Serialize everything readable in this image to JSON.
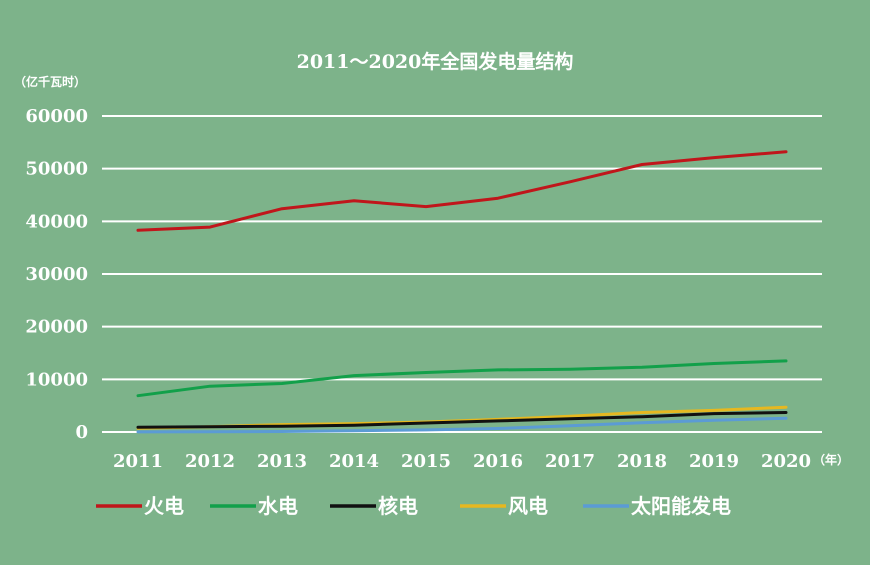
{
  "chart_data": {
    "type": "line",
    "title": "2011～2020年全国发电量结构",
    "y_unit": "（亿千瓦时）",
    "x_unit": "（年）",
    "categories": [
      "2011",
      "2012",
      "2013",
      "2014",
      "2015",
      "2016",
      "2017",
      "2018",
      "2019",
      "2020"
    ],
    "yticks": [
      "0",
      "10000",
      "20000",
      "30000",
      "40000",
      "50000",
      "60000"
    ],
    "ylim": [
      0,
      60000
    ],
    "grid": true,
    "legend_position": "bottom",
    "series": [
      {
        "name": "火电",
        "color": "#c0161b",
        "values": [
          38300,
          38900,
          42400,
          43900,
          42800,
          44400,
          47500,
          50800,
          52100,
          53200
        ]
      },
      {
        "name": "水电",
        "color": "#12a04a",
        "values": [
          6900,
          8700,
          9200,
          10700,
          11300,
          11800,
          11900,
          12300,
          13000,
          13500
        ]
      },
      {
        "name": "核电",
        "color": "#111111",
        "values": [
          900,
          1000,
          1100,
          1300,
          1700,
          2100,
          2500,
          2900,
          3500,
          3700
        ]
      },
      {
        "name": "风电",
        "color": "#e6b820",
        "values": [
          700,
          1000,
          1400,
          1600,
          1900,
          2400,
          3000,
          3700,
          4100,
          4700
        ]
      },
      {
        "name": "太阳能发电",
        "color": "#5b9bd5",
        "values": [
          10,
          40,
          90,
          240,
          400,
          660,
          1180,
          1770,
          2240,
          2610
        ]
      }
    ]
  }
}
